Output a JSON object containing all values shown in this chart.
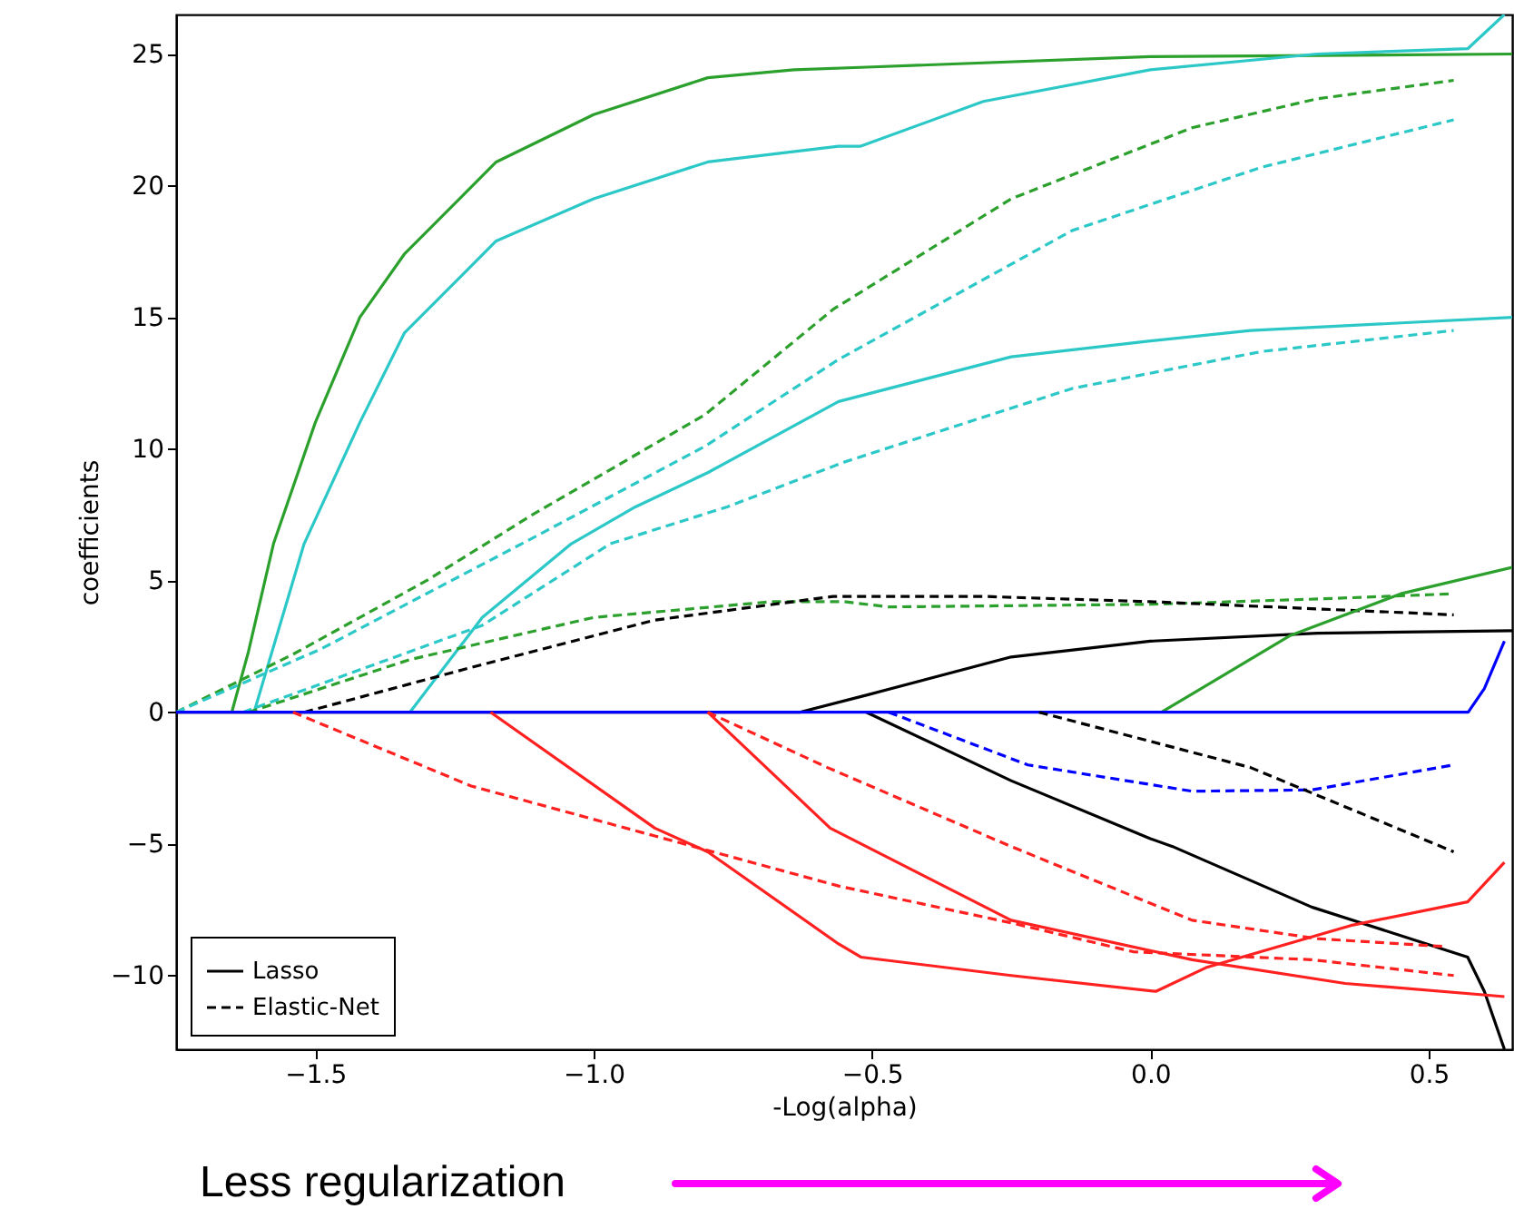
{
  "chart_data": {
    "type": "line",
    "xlabel": "-Log(alpha)",
    "ylabel": "coefficients",
    "xlim": [
      -1.75,
      0.65
    ],
    "ylim": [
      -12.8,
      26.5
    ],
    "xticks": [
      {
        "value": -1.5,
        "label": "−1.5"
      },
      {
        "value": -1.0,
        "label": "−1.0"
      },
      {
        "value": -0.5,
        "label": "−0.5"
      },
      {
        "value": 0.0,
        "label": "0.0"
      },
      {
        "value": 0.5,
        "label": "0.5"
      }
    ],
    "yticks": [
      {
        "value": -10,
        "label": "−10"
      },
      {
        "value": -5,
        "label": "−5"
      },
      0,
      5,
      10,
      15,
      20,
      25
    ],
    "grid": false,
    "legend": "bottom left",
    "marker": "none",
    "annotations": [
      "Less regularization"
    ],
    "series": [
      {
        "color": "#2ca02c",
        "line_style": "solid",
        "x": [
          -1.65,
          -1.62,
          -1.575,
          -1.5,
          -1.42,
          -1.34,
          -1.175,
          -1.0,
          -0.795,
          -0.64,
          -0.51,
          0.0,
          0.65
        ],
        "values": [
          0,
          2.3,
          6.4,
          11,
          15,
          17.4,
          20.9,
          22.7,
          24.1,
          24.4,
          24.5,
          24.9,
          25.0
        ]
      },
      {
        "color": "#2cc8c8",
        "line_style": "solid",
        "x": [
          -1.61,
          -1.52,
          -1.42,
          -1.34,
          -1.175,
          -1.0,
          -0.795,
          -0.56,
          -0.52,
          -0.3,
          0.0,
          0.3,
          0.57,
          0.636
        ],
        "values": [
          0,
          6.4,
          11,
          14.4,
          17.9,
          19.5,
          20.9,
          21.5,
          21.5,
          23.2,
          24.4,
          25.0,
          25.2,
          26.5
        ]
      },
      {
        "color": "#2cc8c8",
        "line_style": "solid",
        "x": [
          -1.33,
          -1.2,
          -1.04,
          -0.925,
          -0.795,
          -0.56,
          -0.25,
          0.0,
          0.18,
          0.65
        ],
        "values": [
          0,
          3.6,
          6.4,
          7.8,
          9.1,
          11.8,
          13.5,
          14.1,
          14.5,
          15.0
        ]
      },
      {
        "color": "#2ca02c",
        "line_style": "dashed",
        "x": [
          -1.75,
          -1.54,
          -1.3,
          -1.11,
          -0.8,
          -0.57,
          -0.25,
          0.075,
          0.3,
          0.545
        ],
        "values": [
          0,
          2.2,
          5,
          7.5,
          11.3,
          15.3,
          19.5,
          22.2,
          23.3,
          24.0
        ]
      },
      {
        "color": "#2cc8c8",
        "line_style": "dashed",
        "x": [
          -1.75,
          -1.49,
          -1.12,
          -0.8,
          -0.56,
          -0.14,
          0.2,
          0.545
        ],
        "values": [
          0,
          2.4,
          6.5,
          10.1,
          13.4,
          18.3,
          20.7,
          22.5
        ]
      },
      {
        "color": "#2cc8c8",
        "line_style": "dashed",
        "x": [
          -1.63,
          -1.2,
          -0.97,
          -0.76,
          -0.55,
          -0.14,
          0.2,
          0.545
        ],
        "values": [
          0,
          3.3,
          6.4,
          7.8,
          9.5,
          12.3,
          13.7,
          14.5
        ]
      },
      {
        "color": "#2ca02c",
        "line_style": "dashed",
        "x": [
          -1.62,
          -1.33,
          -1.0,
          -0.68,
          -0.55,
          -0.47,
          0.0,
          0.3,
          0.545
        ],
        "values": [
          0,
          2.0,
          3.6,
          4.2,
          4.2,
          4.0,
          4.1,
          4.3,
          4.5
        ]
      },
      {
        "name": "Lasso",
        "color": "#000000",
        "line_style": "solid",
        "x": [
          -1.75,
          -0.63,
          -0.51,
          -0.25,
          0.0,
          0.3,
          0.65
        ],
        "values": [
          0,
          0,
          0.65,
          2.1,
          2.7,
          3.0,
          3.1
        ]
      },
      {
        "name": "Elastic-Net",
        "color": "#000000",
        "line_style": "dashed",
        "x": [
          -1.52,
          -1.22,
          -0.89,
          -0.57,
          -0.3,
          0.0,
          0.545
        ],
        "values": [
          0,
          1.7,
          3.5,
          4.4,
          4.4,
          4.2,
          3.7
        ]
      },
      {
        "color": "#000000",
        "line_style": "solid",
        "x": [
          -0.51,
          -0.25,
          0.0,
          0.04,
          0.29,
          0.57,
          0.6,
          0.636
        ],
        "values": [
          0,
          -2.6,
          -4.8,
          -5.1,
          -7.4,
          -9.3,
          -10.6,
          -12.8
        ]
      },
      {
        "color": "#2ca02c",
        "line_style": "solid",
        "x": [
          0.02,
          0.25,
          0.45,
          0.65
        ],
        "values": [
          0,
          2.9,
          4.5,
          5.5
        ]
      },
      {
        "color": "#0000ff",
        "line_style": "solid",
        "x": [
          -1.75,
          0.571,
          0.6,
          0.636
        ],
        "values": [
          0,
          0,
          0.9,
          2.7
        ]
      },
      {
        "color": "#0000ff",
        "line_style": "dashed",
        "x": [
          -0.47,
          -0.22,
          0.075,
          0.29,
          0.545
        ],
        "values": [
          0,
          -2.0,
          -3.0,
          -2.95,
          -2.0
        ]
      },
      {
        "color": "#000000",
        "line_style": "dashed",
        "x": [
          -0.2,
          0.18,
          0.545
        ],
        "values": [
          0,
          -2.1,
          -5.3
        ]
      },
      {
        "color": "#ff2020",
        "line_style": "dashed",
        "x": [
          -1.54,
          -1.22,
          -0.89,
          -0.56,
          -0.25,
          -0.03,
          0.29,
          0.545
        ],
        "values": [
          0,
          -2.8,
          -4.7,
          -6.6,
          -8.0,
          -9.1,
          -9.4,
          -10.0
        ]
      },
      {
        "color": "#ff2020",
        "line_style": "dashed",
        "x": [
          -0.795,
          -0.58,
          -0.25,
          0.075,
          0.3,
          0.53
        ],
        "values": [
          0,
          -2.1,
          -5.1,
          -7.9,
          -8.6,
          -8.9
        ]
      },
      {
        "color": "#ff2020",
        "line_style": "solid",
        "x": [
          -1.185,
          -0.89,
          -0.795,
          -0.56,
          -0.52,
          -0.25,
          0.01,
          0.1,
          0.36,
          0.57,
          0.636
        ],
        "values": [
          0,
          -4.4,
          -5.3,
          -8.8,
          -9.3,
          -10.0,
          -10.6,
          -9.7,
          -8.1,
          -7.2,
          -5.7
        ]
      },
      {
        "color": "#ff2020",
        "line_style": "solid",
        "x": [
          -0.795,
          -0.575,
          -0.25,
          0.075,
          0.35,
          0.636
        ],
        "values": [
          0,
          -4.4,
          -7.9,
          -9.4,
          -10.3,
          -10.8
        ]
      }
    ]
  }
}
